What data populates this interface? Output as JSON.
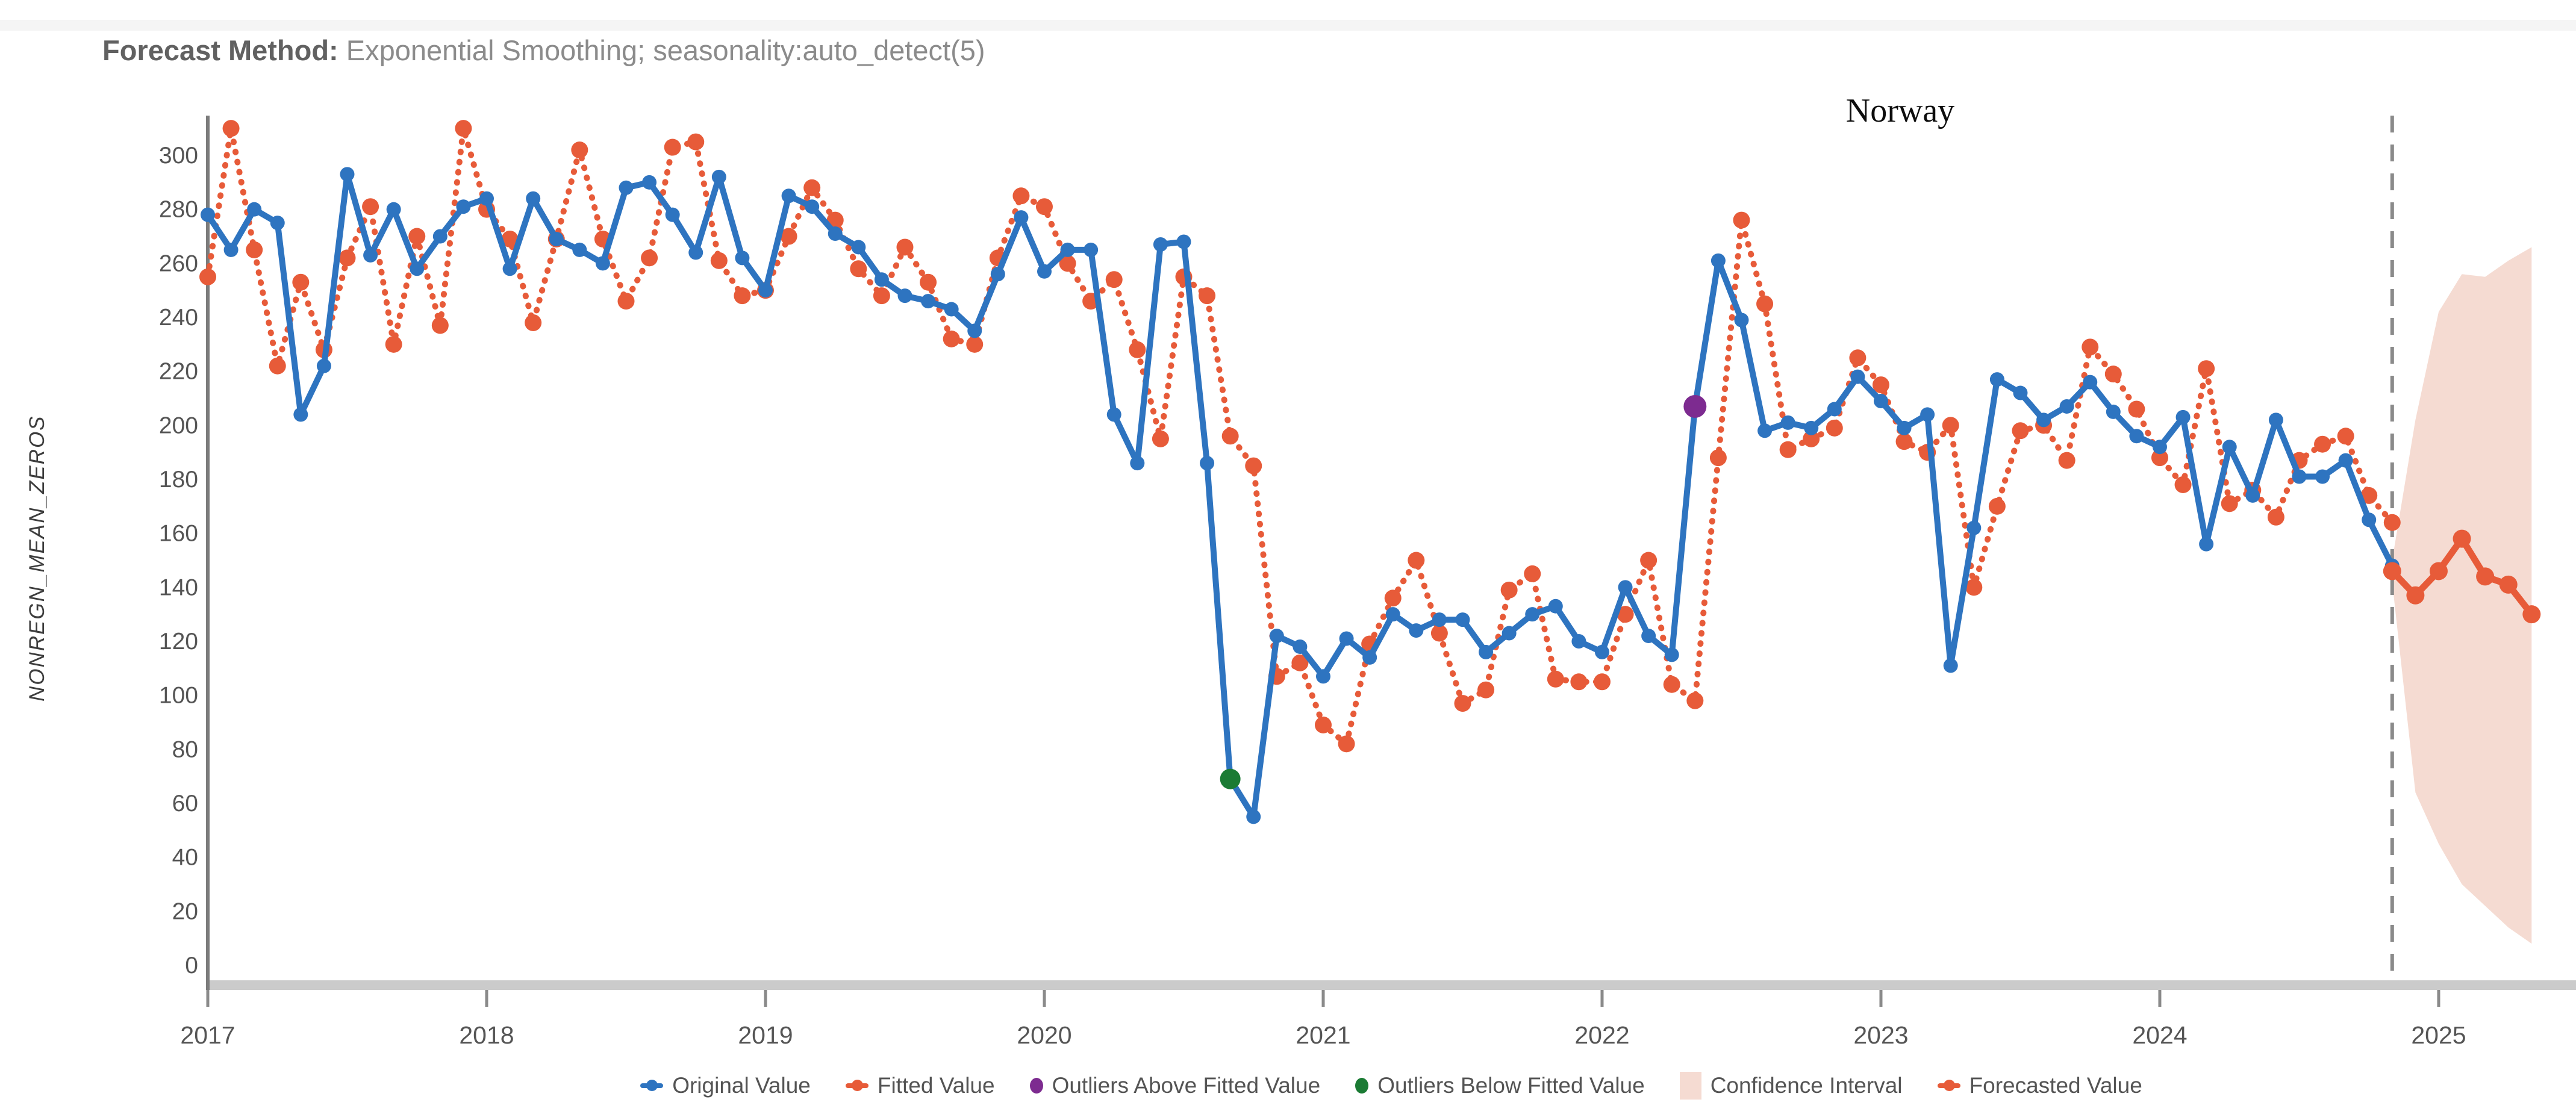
{
  "header": {
    "label": "Forecast Method:",
    "value": "Exponential Smoothing; seasonality:auto_detect(5)"
  },
  "chart": {
    "title": "Norway",
    "y_axis_title": "NONREGN_MEAN_ZEROS"
  },
  "colors": {
    "original": "#2e74c0",
    "fitted": "#e75b39",
    "forecast": "#e75b39",
    "outlier_above": "#7d2b90",
    "outlier_below": "#1b7b34",
    "confidence": "#f5dbd2",
    "axis_line": "#7c7c7c",
    "baseline_band": "#cbcbcb",
    "tick_text": "#555555",
    "dashed_line": "#8a8a8a"
  },
  "legend": {
    "items": [
      {
        "label": "Original Value",
        "type": "line-dot",
        "color": "#2e74c0"
      },
      {
        "label": "Fitted Value",
        "type": "line-dot",
        "color": "#e75b39"
      },
      {
        "label": "Outliers Above Fitted Value",
        "type": "dot",
        "color": "#7d2b90"
      },
      {
        "label": "Outliers Below Fitted Value",
        "type": "dot",
        "color": "#1b7b34"
      },
      {
        "label": "Confidence Interval",
        "type": "swatch",
        "color": "#f5dbd2"
      },
      {
        "label": "Forecasted Value",
        "type": "line-dot",
        "color": "#e75b39"
      }
    ]
  },
  "chart_data": {
    "type": "line",
    "title": "Norway",
    "ylabel": "NONREGN_MEAN_ZEROS",
    "frequency": "monthly",
    "x_start": "2017-01",
    "ylim": [
      0,
      315
    ],
    "yticks": [
      0,
      20,
      40,
      60,
      80,
      100,
      120,
      140,
      160,
      180,
      200,
      220,
      240,
      260,
      280,
      300
    ],
    "xticks": [
      {
        "label": "2017",
        "month_index": 0
      },
      {
        "label": "2018",
        "month_index": 12
      },
      {
        "label": "2019",
        "month_index": 24
      },
      {
        "label": "2020",
        "month_index": 36
      },
      {
        "label": "2021",
        "month_index": 48
      },
      {
        "label": "2022",
        "month_index": 60
      },
      {
        "label": "2023",
        "month_index": 72
      },
      {
        "label": "2024",
        "month_index": 84
      },
      {
        "label": "2025",
        "month_index": 96
      }
    ],
    "series": [
      {
        "name": "Original Value",
        "start_month_index": 0,
        "values": [
          278,
          265,
          280,
          275,
          204,
          222,
          293,
          263,
          280,
          258,
          270,
          281,
          284,
          258,
          284,
          269,
          265,
          260,
          288,
          290,
          278,
          264,
          292,
          262,
          250,
          285,
          281,
          271,
          266,
          254,
          248,
          246,
          243,
          235,
          256,
          277,
          257,
          265,
          265,
          204,
          186,
          267,
          268,
          186,
          69,
          55,
          122,
          118,
          107,
          121,
          114,
          130,
          124,
          128,
          128,
          116,
          123,
          130,
          133,
          120,
          116,
          140,
          122,
          115,
          207,
          261,
          239,
          198,
          201,
          199,
          206,
          218,
          209,
          199,
          204,
          111,
          162,
          217,
          212,
          202,
          207,
          216,
          205,
          196,
          192,
          203,
          156,
          192,
          174,
          202,
          181,
          181,
          187,
          165,
          148
        ]
      },
      {
        "name": "Fitted Value",
        "start_month_index": 0,
        "values": [
          255,
          310,
          265,
          222,
          253,
          228,
          262,
          281,
          230,
          270,
          237,
          310,
          280,
          269,
          238,
          269,
          302,
          269,
          246,
          262,
          303,
          305,
          261,
          248,
          250,
          270,
          288,
          276,
          258,
          248,
          266,
          253,
          232,
          230,
          262,
          285,
          281,
          260,
          246,
          254,
          228,
          195,
          255,
          248,
          196,
          185,
          107,
          112,
          89,
          82,
          119,
          136,
          150,
          123,
          97,
          102,
          139,
          145,
          106,
          105,
          105,
          130,
          150,
          104,
          98,
          188,
          276,
          245,
          191,
          195,
          199,
          225,
          215,
          194,
          190,
          200,
          140,
          170,
          198,
          200,
          187,
          229,
          219,
          206,
          188,
          178,
          221,
          171,
          176,
          166,
          187,
          193,
          196,
          174,
          164
        ]
      },
      {
        "name": "Forecasted Value",
        "start_month_index": 94,
        "values": [
          146,
          137,
          146,
          158,
          144,
          141,
          130
        ]
      }
    ],
    "outliers_above_fitted": [
      {
        "date": "2022-05",
        "month_index": 64,
        "value": 207
      }
    ],
    "outliers_below_fitted": [
      {
        "date": "2020-09",
        "month_index": 44,
        "value": 69
      }
    ],
    "confidence_interval": {
      "month_indices": [
        94,
        95,
        96,
        97,
        98,
        99,
        100
      ],
      "upper": [
        150,
        202,
        242,
        256,
        255,
        261,
        266
      ],
      "lower": [
        142,
        64,
        45,
        30,
        22,
        14,
        8
      ]
    },
    "forecast_boundary_month_index": 94,
    "legend_position": "bottom",
    "grid": false
  }
}
